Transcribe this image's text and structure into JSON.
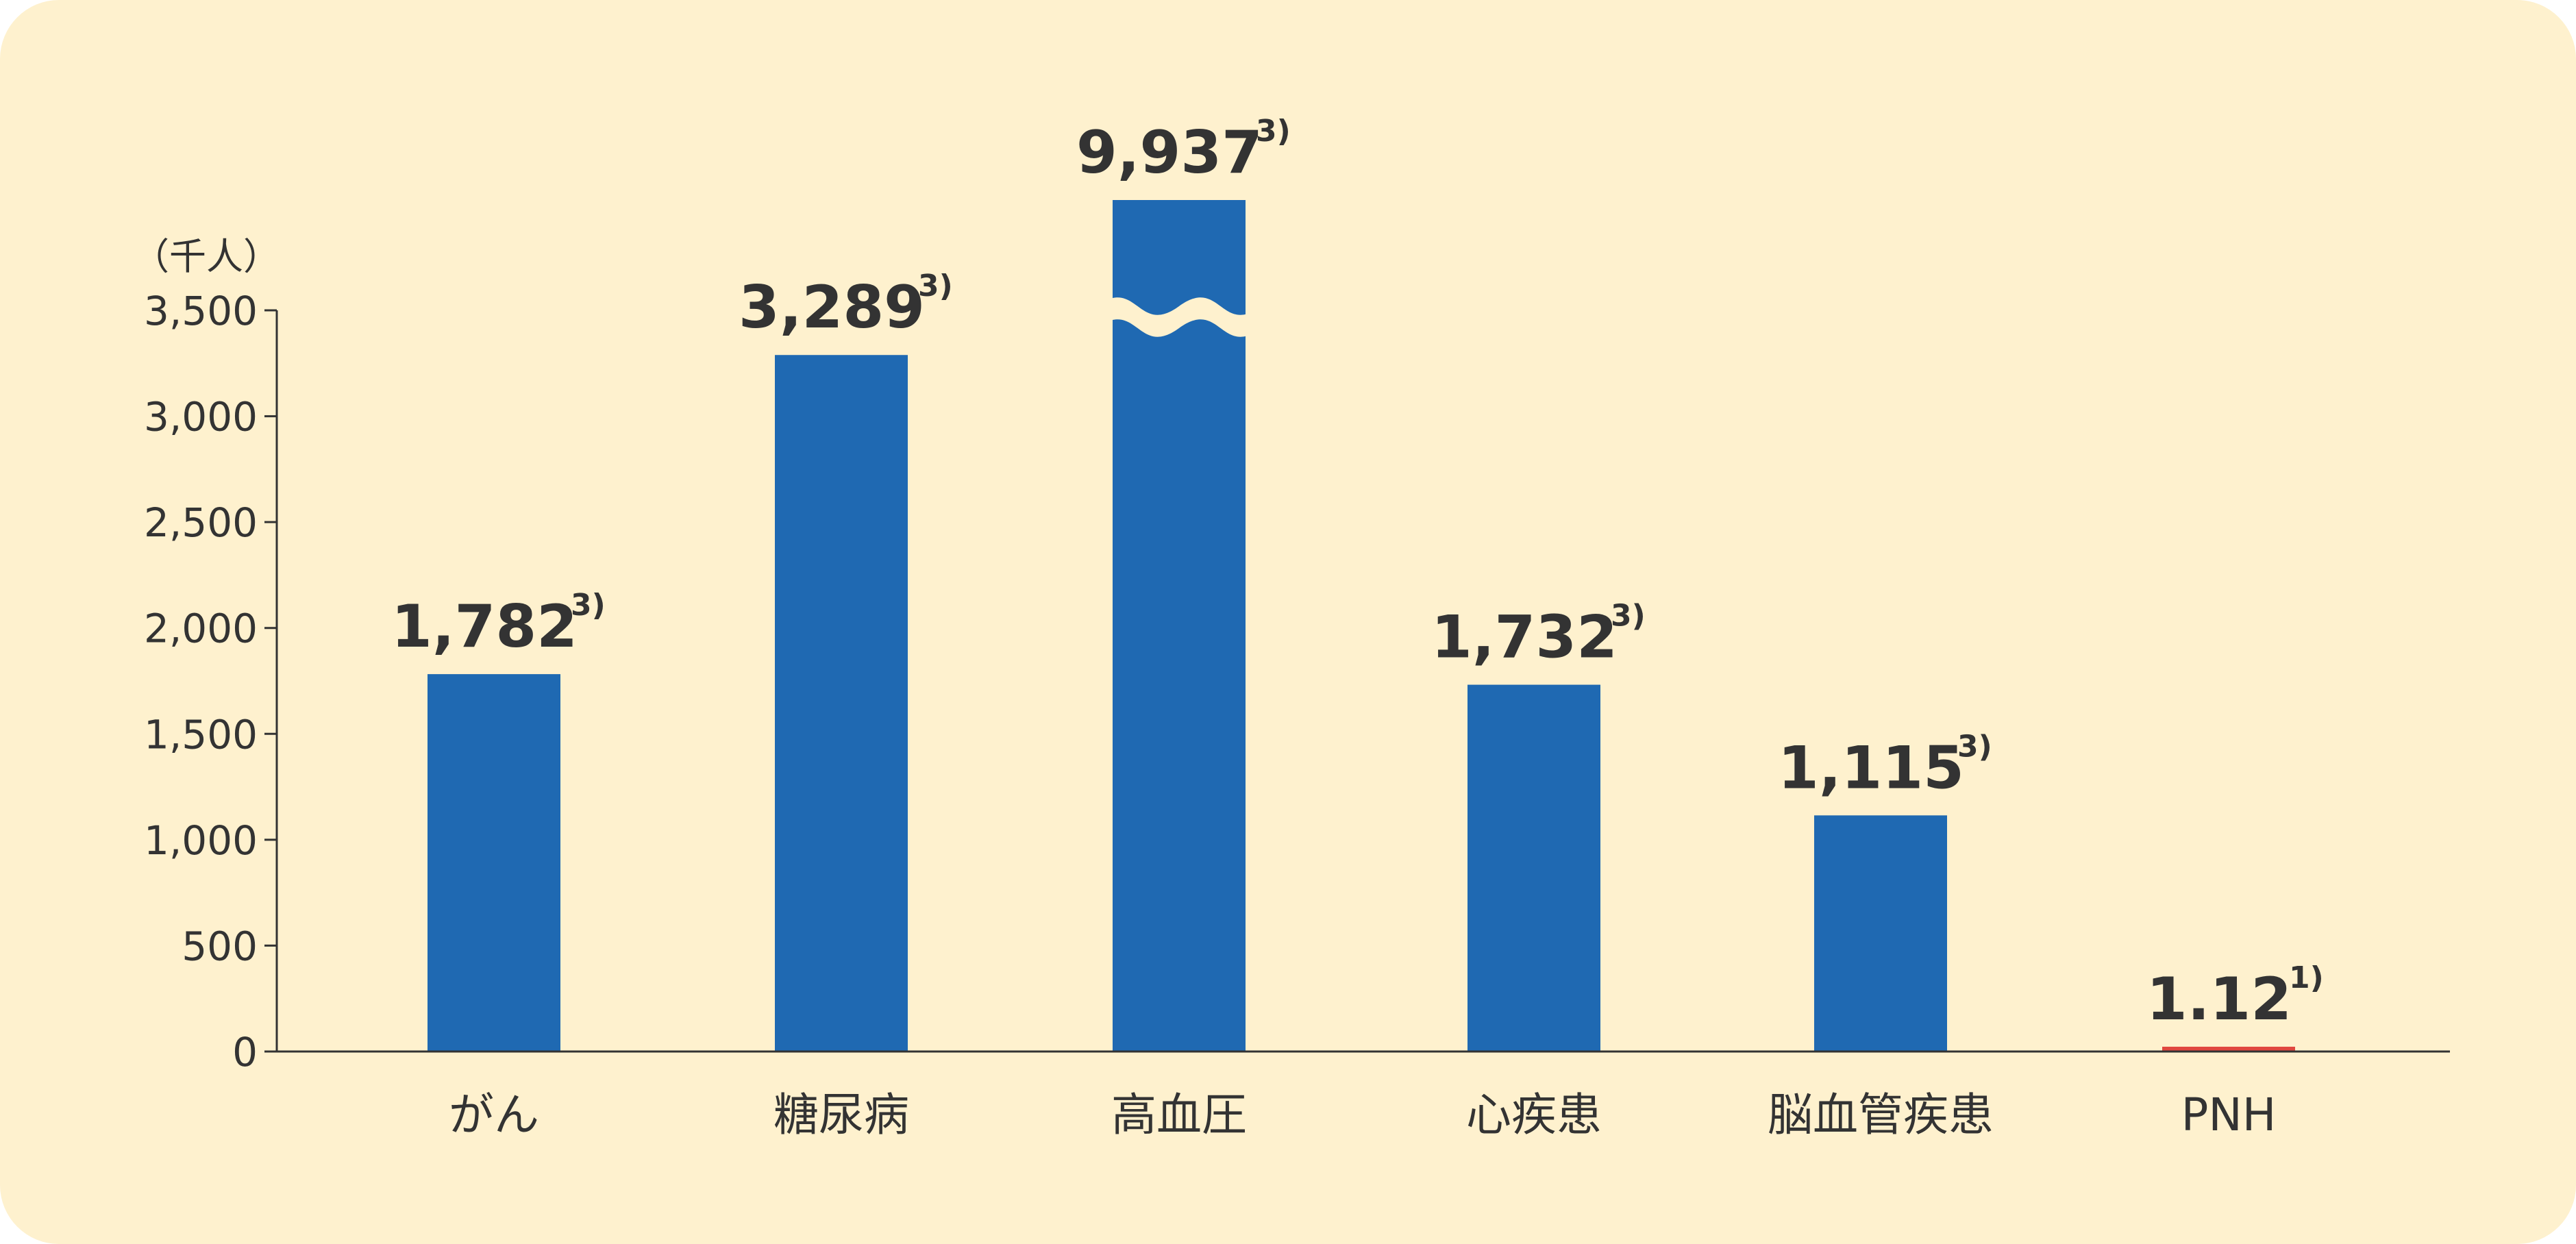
{
  "chart_data": {
    "type": "bar",
    "title": "",
    "xlabel": "",
    "ylabel": "",
    "unit": "（千人）",
    "ylim": [
      0,
      3500
    ],
    "yticks": [
      0,
      500,
      1000,
      1500,
      2000,
      2500,
      3000,
      3500
    ],
    "ytick_labels": [
      "0",
      "500",
      "1,000",
      "1,500",
      "2,000",
      "2,500",
      "3,000",
      "3,500"
    ],
    "axis_break": true,
    "grid": false,
    "categories": [
      "がん",
      "糖尿病",
      "高血圧",
      "心疾患",
      "脳血管疾患",
      "PNH"
    ],
    "values": [
      1782,
      3289,
      9937,
      1732,
      1115,
      1.12
    ],
    "value_labels": [
      "1,782",
      "3,289",
      "9,937",
      "1,732",
      "1,115",
      "1.12"
    ],
    "value_notes": [
      "3)",
      "3)",
      "3)",
      "3)",
      "3)",
      "1)"
    ],
    "colors": {
      "bar": "#1f69b2",
      "highlight_bar": "#e0473f",
      "background": "#fef1ce",
      "axis": "#333333"
    },
    "highlight_index": 5
  }
}
